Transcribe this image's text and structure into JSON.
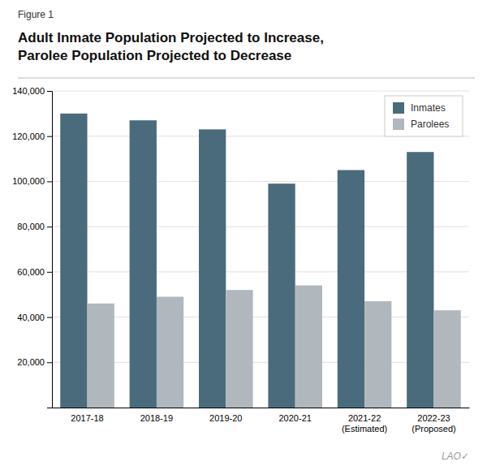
{
  "chart_data": {
    "type": "bar",
    "title": "Adult Inmate Population Projected to Increase,\nParolee Population Projected to Decrease",
    "annotations": [
      "Figure 1",
      "LAO✓"
    ],
    "categories": [
      "2017-18",
      "2018-19",
      "2019-20",
      "2020-21",
      "2021-22\n(Estimated)",
      "2022-23\n(Proposed)"
    ],
    "series": [
      {
        "name": "Inmates",
        "color": "#4a6b7c",
        "values": [
          130000,
          127000,
          123000,
          99000,
          105000,
          113000
        ]
      },
      {
        "name": "Parolees",
        "color": "#b0b8be",
        "values": [
          46000,
          49000,
          52000,
          54000,
          47000,
          43000
        ]
      }
    ],
    "ylim": [
      0,
      140000
    ],
    "yticks": [
      {
        "value": 20000,
        "label": "20,000"
      },
      {
        "value": 40000,
        "label": "40,000"
      },
      {
        "value": 60000,
        "label": "60,000"
      },
      {
        "value": 80000,
        "label": "80,000"
      },
      {
        "value": 100000,
        "label": "100,000"
      },
      {
        "value": 120000,
        "label": "120,000"
      },
      {
        "value": 140000,
        "label": "140,000"
      }
    ],
    "grid": true,
    "legend": "top-right"
  }
}
